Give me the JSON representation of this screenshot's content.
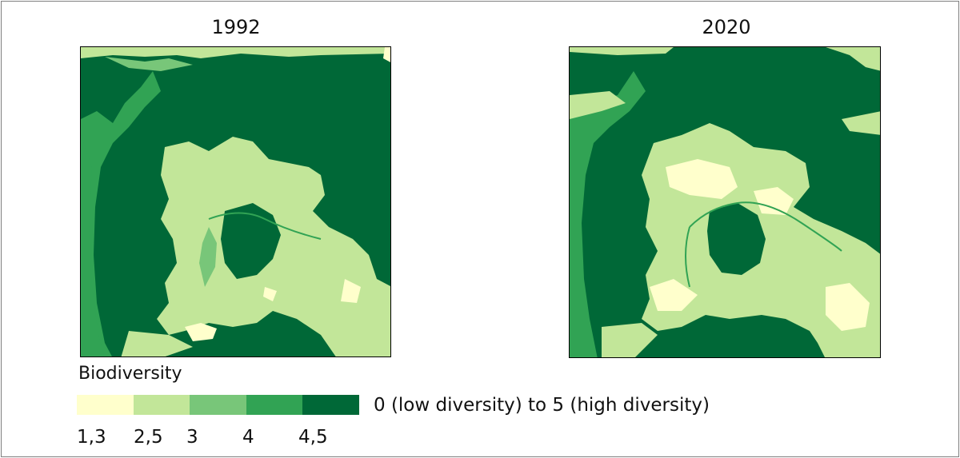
{
  "maps": {
    "left": {
      "title": "1992"
    },
    "right": {
      "title": "2020"
    }
  },
  "legend": {
    "title": "Biodiversity",
    "description": "0 (low diversity) to 5 (high diversity)",
    "classes": [
      {
        "label": "1,3",
        "color": "#ffffcc"
      },
      {
        "label": "2,5",
        "color": "#c2e699"
      },
      {
        "label": "3",
        "color": "#78c679"
      },
      {
        "label": "4",
        "color": "#31a354"
      },
      {
        "label": "4,5",
        "color": "#006837"
      }
    ]
  }
}
